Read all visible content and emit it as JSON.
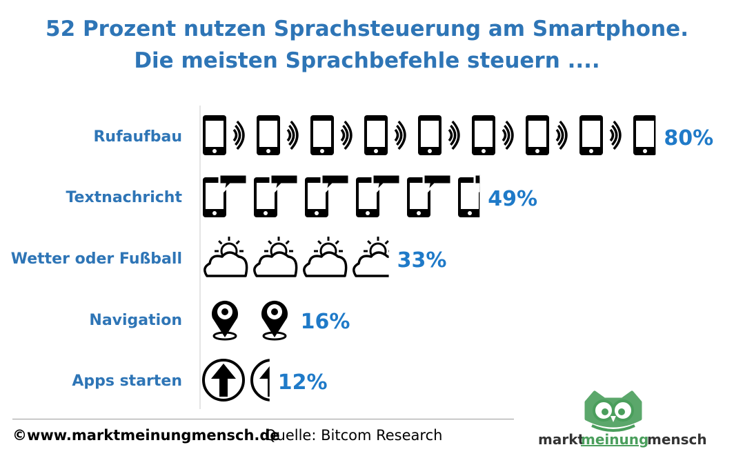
{
  "title_line1": "52 Prozent nutzen Sprachsteuerung am Smartphone.",
  "title_line2": "Die meisten Sprachbefehle steuern ....",
  "colors": {
    "title": "#2e75b6",
    "labels": "#2e75b6",
    "values": "#1f7ac8",
    "icons": "#000000",
    "logo_green": "#4a9e5c",
    "logo_dark": "#333333"
  },
  "chart_data": {
    "type": "bar",
    "style": "pictograph",
    "categories": [
      "Rufaufbau",
      "Textnachricht",
      "Wetter oder Fußball",
      "Navigation",
      "Apps starten"
    ],
    "values": [
      80,
      49,
      33,
      16,
      12
    ],
    "value_labels": [
      "80%",
      "49%",
      "33%",
      "16%",
      "12%"
    ],
    "icons": [
      "phone-with-sound-waves-icon",
      "phone-with-speech-bubble-icon",
      "sun-behind-cloud-icon",
      "map-pin-icon",
      "arrow-up-circle-icon"
    ],
    "units": "%",
    "title": "52 Prozent nutzen Sprachsteuerung am Smartphone. Die meisten Sprachbefehle steuern ....",
    "legend": "none",
    "grid": false
  },
  "footer": {
    "site": "©www.marktmeinungmensch.de",
    "source": "Quelle: Bitcom Research"
  },
  "logo": {
    "part1": "markt",
    "part2": "meinung",
    "part3": "mensch"
  }
}
